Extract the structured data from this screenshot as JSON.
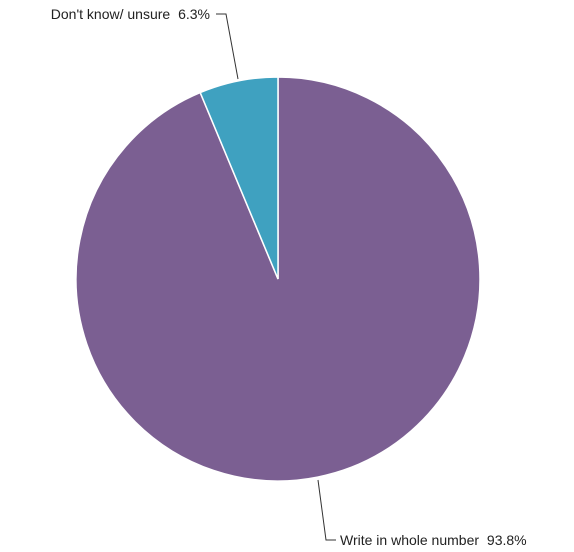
{
  "chart_data": {
    "type": "pie",
    "title": "",
    "start": "top",
    "direction": "clockwise",
    "slices": [
      {
        "label": "Write in whole number",
        "value": 93.8,
        "value_text": "93.8%",
        "color": "#7b5f92"
      },
      {
        "label": "Don't know/ unsure",
        "value": 6.3,
        "value_text": "6.3%",
        "color": "#3fa1c0"
      }
    ]
  }
}
